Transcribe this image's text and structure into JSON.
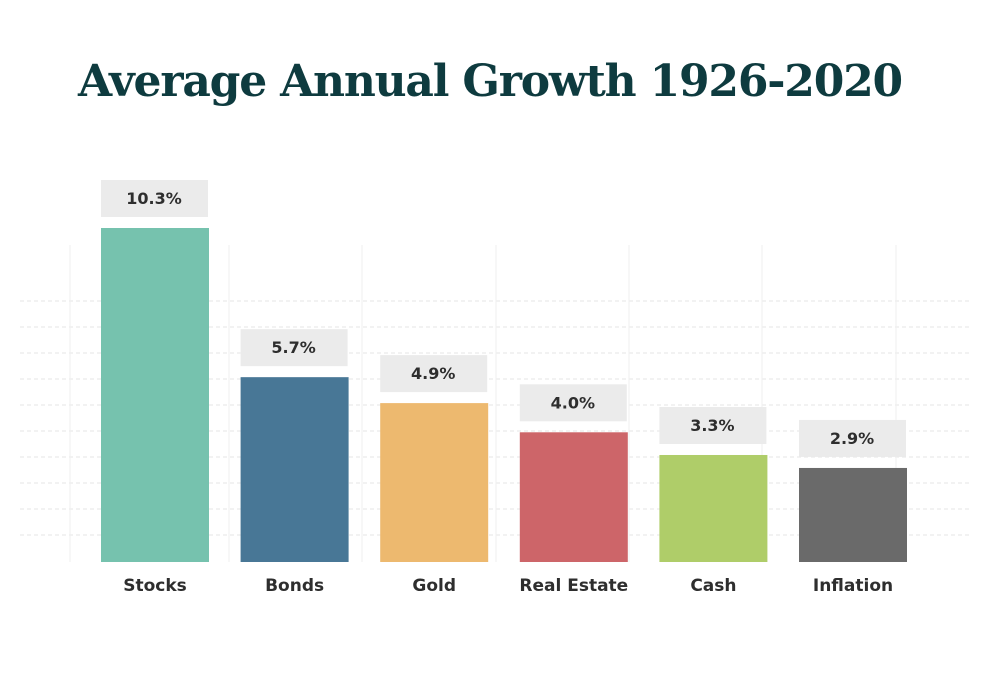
{
  "title": "Average Annual Growth 1926-2020",
  "chart_data": {
    "type": "bar",
    "title": "Average Annual Growth 1926-2020",
    "categories": [
      "Stocks",
      "Bonds",
      "Gold",
      "Real Estate",
      "Cash",
      "Inflation"
    ],
    "values": [
      10.3,
      5.7,
      4.9,
      4.0,
      3.3,
      2.9
    ],
    "data_labels": [
      "10.3%",
      "5.7%",
      "4.9%",
      "4.0%",
      "3.3%",
      "2.9%"
    ],
    "colors": [
      "#76c2ae",
      "#487796",
      "#edb96f",
      "#cd6569",
      "#afcd69",
      "#6a6a6a"
    ],
    "xlabel": "",
    "ylabel": "",
    "ylim": [
      0,
      10.3
    ],
    "grid": true,
    "legend": "none"
  }
}
